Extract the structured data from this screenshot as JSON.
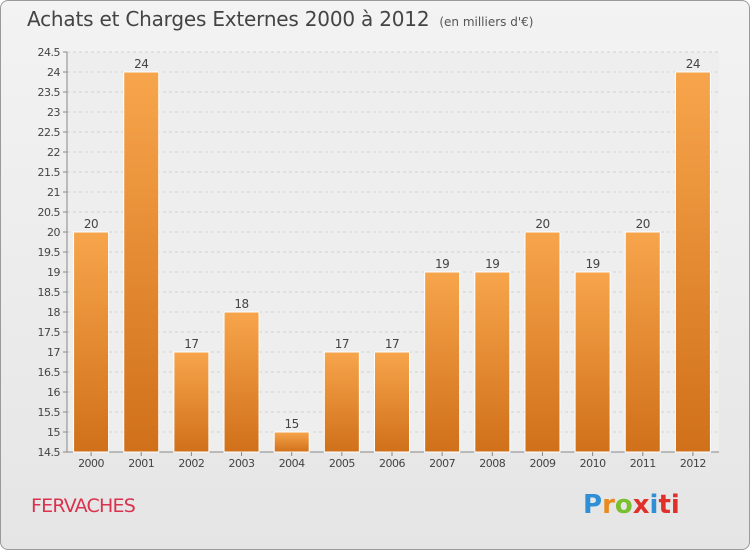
{
  "chart_data": {
    "type": "bar",
    "title": "Achats et Charges Externes 2000 à 2012",
    "subtitle": "(en milliers d'€)",
    "categories": [
      "2000",
      "2001",
      "2002",
      "2003",
      "2004",
      "2005",
      "2006",
      "2007",
      "2008",
      "2009",
      "2010",
      "2011",
      "2012"
    ],
    "values": [
      20,
      24,
      17,
      18,
      15,
      17,
      17,
      19,
      19,
      20,
      19,
      20,
      24
    ],
    "data_labels": [
      "20",
      "24",
      "17",
      "18",
      "15",
      "17",
      "17",
      "19",
      "19",
      "20",
      "19",
      "20",
      "24"
    ],
    "ylim": [
      14.5,
      24.5
    ],
    "yticks": [
      "14.5",
      "15",
      "15.5",
      "16",
      "16.5",
      "17",
      "17.5",
      "18",
      "18.5",
      "19",
      "19.5",
      "20",
      "20.5",
      "21",
      "21.5",
      "22",
      "22.5",
      "23",
      "23.5",
      "24",
      "24.5"
    ],
    "grid": true,
    "legend": "none",
    "colors": {
      "bar_light": "#f7a54c",
      "bar_dark": "#d0701a"
    }
  },
  "location": "FERVACHES",
  "logo": {
    "letters": [
      "P",
      "r",
      "o",
      "x",
      "i",
      "ti"
    ],
    "colors": [
      "#2f8fd6",
      "#e88a1c",
      "#7abf2f",
      "#e0302a",
      "#2f8fd6",
      "#e0302a"
    ]
  }
}
